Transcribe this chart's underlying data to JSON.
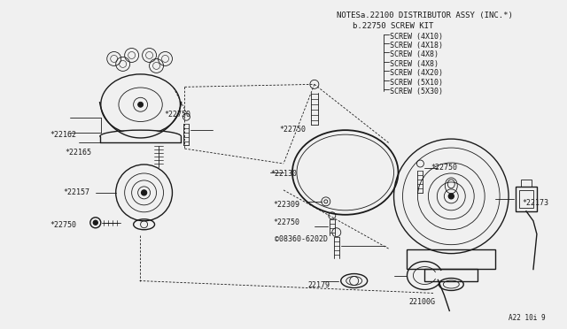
{
  "bg_color": "#f0f0f0",
  "line_color": "#1a1a1a",
  "figsize": [
    6.4,
    3.72
  ],
  "dpi": 100,
  "notes_lines": [
    "NOTESa.22100 DISTRIBUTOR ASSY (INC.*)",
    "b.22750 SCREW KIT",
    "SCREW (4X10)",
    "SCREW (4X18)",
    "SCREW (4X8)",
    "SCREW (4X8)",
    "SCREW (4X20)",
    "SCREW (5X10)",
    "SCREW (5X30)"
  ]
}
